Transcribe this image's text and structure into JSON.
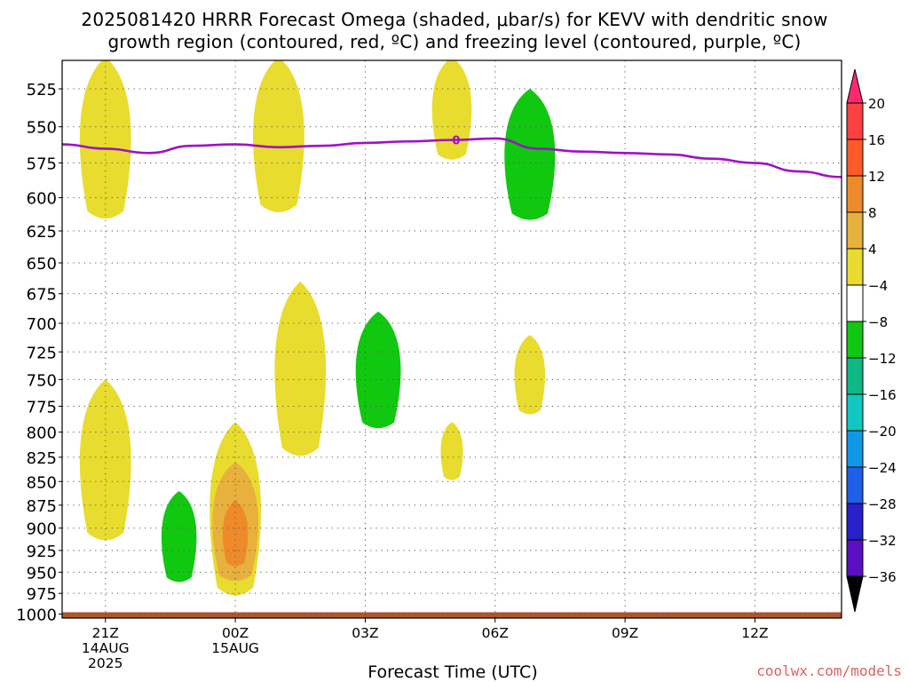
{
  "title": {
    "line1": "2025081420 HRRR Forecast Omega (shaded, μbar/s) for KEVV with dendritic snow",
    "line2": "growth region (contoured, red, ºC) and freezing level (contoured, purple, ºC)"
  },
  "credit": "coolwx.com/models",
  "chart_data": {
    "type": "heatmap",
    "xlabel": "Forecast Time (UTC)",
    "ylabel": "",
    "x_unit": "hours from 2025-08-14 21Z",
    "xlim": [
      -1,
      17
    ],
    "ylim_hPa": [
      1005,
      507
    ],
    "y_scale": "log-pressure (inverted)",
    "grid": true,
    "x_ticks": [
      {
        "value": 0,
        "lines": [
          "21Z",
          "14AUG",
          "2025"
        ]
      },
      {
        "value": 3,
        "lines": [
          "00Z",
          "15AUG"
        ]
      },
      {
        "value": 6,
        "lines": [
          "03Z"
        ]
      },
      {
        "value": 9,
        "lines": [
          "06Z"
        ]
      },
      {
        "value": 12,
        "lines": [
          "09Z"
        ]
      },
      {
        "value": 15,
        "lines": [
          "12Z"
        ]
      }
    ],
    "y_ticks": [
      525,
      550,
      575,
      600,
      625,
      650,
      675,
      700,
      725,
      750,
      775,
      800,
      825,
      850,
      875,
      900,
      925,
      950,
      975,
      1000
    ],
    "colorbar": {
      "levels": [
        20,
        16,
        12,
        8,
        4,
        -4,
        -8,
        -12,
        -16,
        -20,
        -24,
        -28,
        -32,
        -36
      ],
      "colors": [
        "#ff2a6e",
        "#ff4040",
        "#ff5a28",
        "#ee8a2a",
        "#e8b03c",
        "#e8dc2e",
        "#ffffff",
        "#10c810",
        "#10b886",
        "#10c8c0",
        "#1098e8",
        "#2060e8",
        "#2820c8",
        "#5a10c0",
        "#9a10c0",
        "#a8a8a8",
        "#000000"
      ],
      "labels": [
        "20",
        "16",
        "12",
        "8",
        "4",
        "−4",
        "−8",
        "−12",
        "−16",
        "−20",
        "−24",
        "−28",
        "−32",
        "−36"
      ]
    },
    "omega_features": [
      {
        "sign": "positive",
        "value": 4,
        "color": "#e8dc2e",
        "x": 0,
        "p_top": 505,
        "p_bottom": 620
      },
      {
        "sign": "positive",
        "value": 4,
        "color": "#e8dc2e",
        "x": 0,
        "p_top": 750,
        "p_bottom": 920
      },
      {
        "sign": "negative",
        "value": -4,
        "color": "#10c810",
        "x": 1.7,
        "p_top": 860,
        "p_bottom": 965
      },
      {
        "sign": "positive",
        "value": 4,
        "color": "#e8dc2e",
        "x": 3,
        "p_top": 790,
        "p_bottom": 985
      },
      {
        "sign": "positive",
        "value": 8,
        "color": "#e8b03c",
        "x": 3,
        "p_top": 830,
        "p_bottom": 965
      },
      {
        "sign": "positive",
        "value": 12,
        "color": "#ee8a2a",
        "x": 3,
        "p_top": 870,
        "p_bottom": 945
      },
      {
        "sign": "positive",
        "value": 4,
        "color": "#e8dc2e",
        "x": 4,
        "p_top": 505,
        "p_bottom": 615
      },
      {
        "sign": "positive",
        "value": 4,
        "color": "#e8dc2e",
        "x": 4.5,
        "p_top": 665,
        "p_bottom": 830
      },
      {
        "sign": "negative",
        "value": -4,
        "color": "#10c810",
        "x": 6.3,
        "p_top": 690,
        "p_bottom": 800
      },
      {
        "sign": "positive",
        "value": 4,
        "color": "#e8dc2e",
        "x": 8,
        "p_top": 505,
        "p_bottom": 575
      },
      {
        "sign": "positive",
        "value": 4,
        "color": "#e8dc2e",
        "x": 8,
        "p_top": 790,
        "p_bottom": 850
      },
      {
        "sign": "negative",
        "value": -4,
        "color": "#10c810",
        "x": 9.8,
        "p_top": 525,
        "p_bottom": 620
      },
      {
        "sign": "positive",
        "value": 4,
        "color": "#e8dc2e",
        "x": 9.8,
        "p_top": 710,
        "p_bottom": 785
      }
    ],
    "freezing_level": {
      "label": "0",
      "color": "#a010c8",
      "x": [
        -1,
        0,
        1,
        2,
        3,
        4,
        5,
        6,
        7,
        8,
        9,
        10,
        11,
        12,
        13,
        14,
        15,
        16,
        17
      ],
      "y_hPa": [
        562,
        565,
        568,
        563,
        562,
        564,
        563,
        561,
        560,
        559,
        558,
        565,
        567,
        568,
        569,
        572,
        575,
        581,
        585
      ]
    },
    "surface_fill_color": "#b0562c"
  }
}
